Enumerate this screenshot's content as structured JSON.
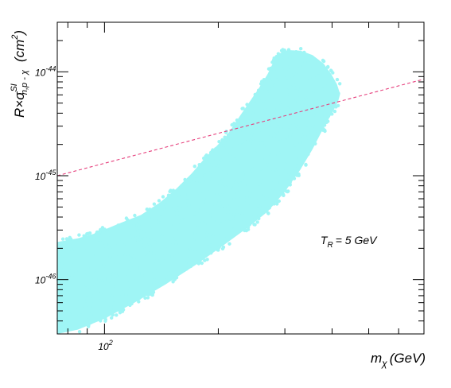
{
  "chart_data": {
    "type": "scatter",
    "title": "",
    "xlabel": {
      "main": "m",
      "sub": "χ",
      "unit": "(GeV)"
    },
    "ylabel": {
      "prefix": "R×σ",
      "sup": "SI",
      "sub": "n,p - χ",
      "unit": "(cm",
      "unit_pow": "2",
      "unit_close": ")"
    },
    "x_scale": "log",
    "y_scale": "log",
    "xlim": [
      75,
      700
    ],
    "ylim": [
      3e-47,
      3e-44
    ],
    "grid": false,
    "x_tick_labels": [
      {
        "value": 100,
        "base": "10",
        "exp": "2"
      }
    ],
    "y_tick_labels": [
      {
        "value": 1e-46,
        "base": "10",
        "exp": "-46"
      },
      {
        "value": 1e-45,
        "base": "10",
        "exp": "-45"
      },
      {
        "value": 1e-44,
        "base": "10",
        "exp": "-44"
      }
    ],
    "series": [
      {
        "type": "scatter-region",
        "color": "#9ff5f5",
        "boundary": [
          [
            75,
            3e-47
          ],
          [
            85,
            3.3e-47
          ],
          [
            100,
            4.2e-47
          ],
          [
            120,
            6e-47
          ],
          [
            145,
            9e-47
          ],
          [
            175,
            1.4e-46
          ],
          [
            205,
            2.1e-46
          ],
          [
            240,
            3.2e-46
          ],
          [
            270,
            4.5e-46
          ],
          [
            300,
            7e-46
          ],
          [
            330,
            1.15e-45
          ],
          [
            355,
            1.8e-45
          ],
          [
            380,
            2.9e-45
          ],
          [
            400,
            4e-45
          ],
          [
            415,
            5.2e-45
          ],
          [
            420,
            6.1e-45
          ],
          [
            412,
            7.6e-45
          ],
          [
            398,
            9.5e-45
          ],
          [
            380,
            1.2e-44
          ],
          [
            355,
            1.45e-44
          ],
          [
            330,
            1.6e-44
          ],
          [
            305,
            1.62e-44
          ],
          [
            290,
            1.5e-44
          ],
          [
            280,
            1.25e-44
          ],
          [
            270,
            9.5e-45
          ],
          [
            255,
            6.8e-45
          ],
          [
            235,
            4.4e-45
          ],
          [
            210,
            2.4e-45
          ],
          [
            185,
            1.5e-45
          ],
          [
            170,
            1.05e-45
          ],
          [
            155,
            7.5e-46
          ],
          [
            140,
            5.5e-46
          ],
          [
            125,
            4.2e-46
          ],
          [
            110,
            3.5e-46
          ],
          [
            95,
            2.8e-46
          ],
          [
            85,
            2.5e-46
          ],
          [
            75,
            2.3e-46
          ]
        ]
      },
      {
        "type": "dashed-line",
        "color": "#e6407d",
        "points": [
          [
            75,
            1e-45
          ],
          [
            700,
            8.5e-45
          ]
        ]
      }
    ],
    "annotations": [
      {
        "text_main": "T",
        "text_sub": "R",
        "text_rest": "= 5 GeV",
        "x": 380,
        "y": 2.2e-46
      }
    ]
  }
}
